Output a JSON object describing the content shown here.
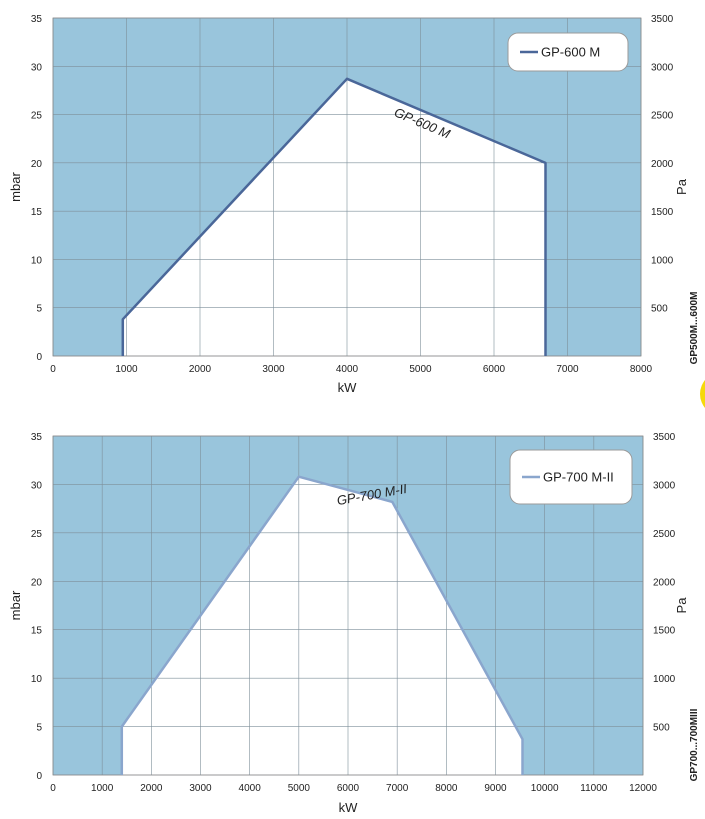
{
  "side_labels": [
    "GP500M...600M",
    "GP700...700MIII"
  ],
  "colors": {
    "area": "#99c5dc",
    "grid": "#7e8f9a",
    "inside": "#ffffff"
  },
  "chart_data": [
    {
      "type": "area",
      "xlabel": "kW",
      "ylabel": "mbar",
      "y2label": "Pa",
      "xlim": [
        0,
        8000
      ],
      "ylim": [
        0,
        35
      ],
      "y2lim": [
        0,
        3500
      ],
      "xticks": [
        0,
        1000,
        2000,
        3000,
        4000,
        5000,
        6000,
        7000,
        8000
      ],
      "yticks": [
        0,
        5,
        10,
        15,
        20,
        25,
        30,
        35
      ],
      "y2ticks": [
        500,
        1000,
        1500,
        2000,
        2500,
        3000,
        3500
      ],
      "grid": true,
      "legend_position": "top-right",
      "line_color": "#4a6799",
      "series": [
        {
          "name": "GP-600 M",
          "x": [
            950,
            950,
            4000,
            6700,
            6700
          ],
          "y": [
            0,
            3.8,
            28.7,
            20,
            0
          ]
        }
      ],
      "annotations": [
        {
          "text": "GP-600 M",
          "x": 5000,
          "y": 23.7,
          "angle": 23
        }
      ]
    },
    {
      "type": "area",
      "xlabel": "kW",
      "ylabel": "mbar",
      "y2label": "Pa",
      "xlim": [
        0,
        12000
      ],
      "ylim": [
        0,
        35
      ],
      "y2lim": [
        0,
        3500
      ],
      "xticks": [
        0,
        1000,
        2000,
        3000,
        4000,
        5000,
        6000,
        7000,
        8000,
        9000,
        10000,
        11000,
        12000
      ],
      "yticks": [
        0,
        5,
        10,
        15,
        20,
        25,
        30,
        35
      ],
      "y2ticks": [
        500,
        1000,
        1500,
        2000,
        2500,
        3000,
        3500
      ],
      "grid": true,
      "legend_position": "top-right",
      "line_color": "#8aa6cd",
      "series": [
        {
          "name": "GP-700 M-II",
          "x": [
            1400,
            1400,
            5000,
            6900,
            9550,
            9550
          ],
          "y": [
            0,
            5,
            30.8,
            28.2,
            3.7,
            0
          ]
        }
      ],
      "annotations": [
        {
          "text": "GP-700 M-II",
          "x": 6500,
          "y": 28.5,
          "angle": -10
        }
      ]
    }
  ]
}
